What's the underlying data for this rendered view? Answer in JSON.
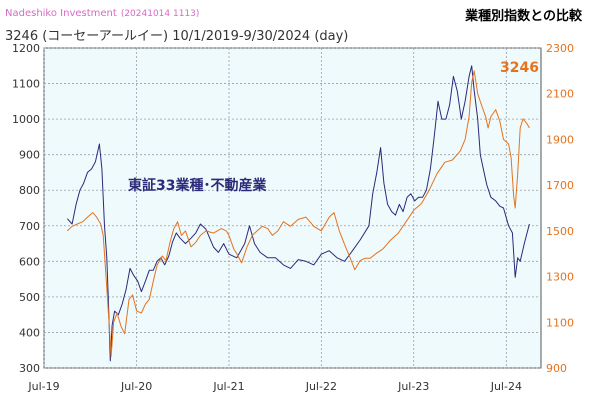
{
  "header": {
    "brand": "Nadeshiko Investment",
    "stamp": "(20241014 1113)",
    "title": "3246 (コーセーアールイー) 10/1/2019-9/30/2024 (day)",
    "compare_title": "業種別指数との比較"
  },
  "colors": {
    "index_line": "#2b2a7a",
    "stock_line": "#e5731e",
    "plot_bg": "#eefafc",
    "grid": "#9aa0a8"
  },
  "chart_data": {
    "type": "line",
    "x_ticks": [
      "Jul-19",
      "Jul-20",
      "Jul-21",
      "Jul-22",
      "Jul-23",
      "Jul-24"
    ],
    "xlim": [
      "2019-07-01",
      "2024-11-15"
    ],
    "y_left": {
      "ticks": [
        300,
        400,
        500,
        600,
        700,
        800,
        900,
        1000,
        1100,
        1200
      ],
      "lim": [
        300,
        1200
      ]
    },
    "y_right": {
      "ticks": [
        900,
        1100,
        1300,
        1500,
        1700,
        1900,
        2100,
        2300
      ],
      "lim": [
        900,
        2300
      ]
    },
    "series": [
      {
        "name": "東証33業種･不動産業",
        "axis": "left",
        "color": "#2b2a7a",
        "points": [
          [
            "2019-10-01",
            720
          ],
          [
            "2019-10-20",
            705
          ],
          [
            "2019-11-05",
            760
          ],
          [
            "2019-11-20",
            800
          ],
          [
            "2019-12-05",
            820
          ],
          [
            "2019-12-20",
            850
          ],
          [
            "2020-01-05",
            860
          ],
          [
            "2020-01-20",
            880
          ],
          [
            "2020-02-05",
            930
          ],
          [
            "2020-02-15",
            860
          ],
          [
            "2020-02-25",
            700
          ],
          [
            "2020-03-05",
            610
          ],
          [
            "2020-03-12",
            480
          ],
          [
            "2020-03-19",
            320
          ],
          [
            "2020-03-26",
            420
          ],
          [
            "2020-04-05",
            460
          ],
          [
            "2020-04-20",
            450
          ],
          [
            "2020-05-05",
            480
          ],
          [
            "2020-05-20",
            520
          ],
          [
            "2020-06-05",
            580
          ],
          [
            "2020-06-20",
            560
          ],
          [
            "2020-07-05",
            545
          ],
          [
            "2020-07-20",
            515
          ],
          [
            "2020-08-05",
            545
          ],
          [
            "2020-08-20",
            575
          ],
          [
            "2020-09-05",
            575
          ],
          [
            "2020-09-20",
            600
          ],
          [
            "2020-10-05",
            610
          ],
          [
            "2020-10-20",
            590
          ],
          [
            "2020-11-05",
            615
          ],
          [
            "2020-11-20",
            655
          ],
          [
            "2020-12-05",
            680
          ],
          [
            "2020-12-20",
            665
          ],
          [
            "2021-01-10",
            650
          ],
          [
            "2021-02-01",
            665
          ],
          [
            "2021-02-20",
            680
          ],
          [
            "2021-03-10",
            705
          ],
          [
            "2021-04-01",
            690
          ],
          [
            "2021-05-01",
            640
          ],
          [
            "2021-05-20",
            625
          ],
          [
            "2021-06-10",
            650
          ],
          [
            "2021-07-01",
            620
          ],
          [
            "2021-08-01",
            610
          ],
          [
            "2021-09-01",
            650
          ],
          [
            "2021-09-20",
            700
          ],
          [
            "2021-10-10",
            650
          ],
          [
            "2021-11-01",
            625
          ],
          [
            "2021-12-01",
            610
          ],
          [
            "2022-01-01",
            610
          ],
          [
            "2022-02-01",
            590
          ],
          [
            "2022-03-01",
            580
          ],
          [
            "2022-04-01",
            605
          ],
          [
            "2022-05-01",
            600
          ],
          [
            "2022-06-01",
            590
          ],
          [
            "2022-07-01",
            620
          ],
          [
            "2022-08-01",
            630
          ],
          [
            "2022-09-01",
            610
          ],
          [
            "2022-10-01",
            600
          ],
          [
            "2022-11-01",
            630
          ],
          [
            "2022-12-01",
            660
          ],
          [
            "2023-01-05",
            700
          ],
          [
            "2023-01-20",
            790
          ],
          [
            "2023-02-05",
            850
          ],
          [
            "2023-02-20",
            920
          ],
          [
            "2023-03-05",
            820
          ],
          [
            "2023-03-20",
            760
          ],
          [
            "2023-04-05",
            740
          ],
          [
            "2023-04-20",
            730
          ],
          [
            "2023-05-05",
            760
          ],
          [
            "2023-05-20",
            740
          ],
          [
            "2023-06-05",
            780
          ],
          [
            "2023-06-20",
            790
          ],
          [
            "2023-07-05",
            770
          ],
          [
            "2023-07-20",
            780
          ],
          [
            "2023-08-05",
            780
          ],
          [
            "2023-08-20",
            800
          ],
          [
            "2023-09-05",
            860
          ],
          [
            "2023-09-20",
            950
          ],
          [
            "2023-10-05",
            1050
          ],
          [
            "2023-10-20",
            1000
          ],
          [
            "2023-11-05",
            1000
          ],
          [
            "2023-11-20",
            1040
          ],
          [
            "2023-12-05",
            1120
          ],
          [
            "2023-12-20",
            1080
          ],
          [
            "2024-01-05",
            1000
          ],
          [
            "2024-01-20",
            1050
          ],
          [
            "2024-02-05",
            1120
          ],
          [
            "2024-02-15",
            1150
          ],
          [
            "2024-02-25",
            1080
          ],
          [
            "2024-03-10",
            1000
          ],
          [
            "2024-03-20",
            900
          ],
          [
            "2024-04-01",
            860
          ],
          [
            "2024-04-15",
            815
          ],
          [
            "2024-05-01",
            780
          ],
          [
            "2024-05-20",
            770
          ],
          [
            "2024-06-05",
            755
          ],
          [
            "2024-06-20",
            750
          ],
          [
            "2024-07-10",
            700
          ],
          [
            "2024-07-25",
            680
          ],
          [
            "2024-08-05",
            555
          ],
          [
            "2024-08-15",
            610
          ],
          [
            "2024-08-25",
            600
          ],
          [
            "2024-09-10",
            650
          ],
          [
            "2024-09-30",
            705
          ]
        ]
      },
      {
        "name": "3246",
        "axis": "right",
        "color": "#e5731e",
        "points": [
          [
            "2019-10-01",
            1500
          ],
          [
            "2019-10-20",
            1520
          ],
          [
            "2019-11-10",
            1530
          ],
          [
            "2019-12-01",
            1540
          ],
          [
            "2019-12-20",
            1560
          ],
          [
            "2020-01-10",
            1580
          ],
          [
            "2020-01-25",
            1560
          ],
          [
            "2020-02-10",
            1530
          ],
          [
            "2020-02-20",
            1480
          ],
          [
            "2020-03-05",
            1250
          ],
          [
            "2020-03-15",
            1080
          ],
          [
            "2020-03-22",
            950
          ],
          [
            "2020-04-01",
            1100
          ],
          [
            "2020-04-15",
            1140
          ],
          [
            "2020-05-01",
            1080
          ],
          [
            "2020-05-15",
            1050
          ],
          [
            "2020-06-01",
            1200
          ],
          [
            "2020-06-15",
            1220
          ],
          [
            "2020-07-01",
            1150
          ],
          [
            "2020-07-20",
            1140
          ],
          [
            "2020-08-05",
            1180
          ],
          [
            "2020-08-20",
            1200
          ],
          [
            "2020-09-05",
            1280
          ],
          [
            "2020-09-20",
            1350
          ],
          [
            "2020-10-10",
            1390
          ],
          [
            "2020-10-25",
            1370
          ],
          [
            "2020-11-10",
            1450
          ],
          [
            "2020-11-25",
            1510
          ],
          [
            "2020-12-10",
            1540
          ],
          [
            "2020-12-25",
            1480
          ],
          [
            "2021-01-10",
            1500
          ],
          [
            "2021-02-01",
            1430
          ],
          [
            "2021-02-20",
            1450
          ],
          [
            "2021-03-10",
            1480
          ],
          [
            "2021-04-01",
            1500
          ],
          [
            "2021-05-01",
            1490
          ],
          [
            "2021-06-01",
            1510
          ],
          [
            "2021-06-20",
            1500
          ],
          [
            "2021-07-01",
            1480
          ],
          [
            "2021-07-20",
            1420
          ],
          [
            "2021-08-01",
            1400
          ],
          [
            "2021-08-20",
            1360
          ],
          [
            "2021-09-10",
            1430
          ],
          [
            "2021-10-01",
            1480
          ],
          [
            "2021-10-20",
            1500
          ],
          [
            "2021-11-10",
            1520
          ],
          [
            "2021-12-01",
            1510
          ],
          [
            "2021-12-20",
            1480
          ],
          [
            "2022-01-10",
            1500
          ],
          [
            "2022-02-01",
            1540
          ],
          [
            "2022-03-01",
            1520
          ],
          [
            "2022-04-01",
            1550
          ],
          [
            "2022-05-01",
            1560
          ],
          [
            "2022-06-01",
            1520
          ],
          [
            "2022-07-01",
            1500
          ],
          [
            "2022-08-01",
            1560
          ],
          [
            "2022-08-20",
            1580
          ],
          [
            "2022-09-10",
            1500
          ],
          [
            "2022-10-01",
            1440
          ],
          [
            "2022-10-20",
            1390
          ],
          [
            "2022-11-10",
            1330
          ],
          [
            "2022-12-01",
            1370
          ],
          [
            "2022-12-20",
            1380
          ],
          [
            "2023-01-10",
            1380
          ],
          [
            "2023-02-01",
            1400
          ],
          [
            "2023-03-01",
            1420
          ],
          [
            "2023-04-01",
            1460
          ],
          [
            "2023-05-01",
            1490
          ],
          [
            "2023-06-01",
            1540
          ],
          [
            "2023-07-01",
            1590
          ],
          [
            "2023-08-01",
            1620
          ],
          [
            "2023-09-01",
            1680
          ],
          [
            "2023-10-01",
            1750
          ],
          [
            "2023-11-01",
            1800
          ],
          [
            "2023-12-01",
            1810
          ],
          [
            "2024-01-01",
            1850
          ],
          [
            "2024-01-20",
            1900
          ],
          [
            "2024-02-05",
            2000
          ],
          [
            "2024-02-15",
            2150
          ],
          [
            "2024-02-25",
            2200
          ],
          [
            "2024-03-10",
            2100
          ],
          [
            "2024-03-25",
            2050
          ],
          [
            "2024-04-10",
            2000
          ],
          [
            "2024-04-20",
            1950
          ],
          [
            "2024-05-01",
            2000
          ],
          [
            "2024-05-20",
            2030
          ],
          [
            "2024-06-05",
            1980
          ],
          [
            "2024-06-20",
            1900
          ],
          [
            "2024-07-10",
            1880
          ],
          [
            "2024-07-20",
            1820
          ],
          [
            "2024-07-30",
            1650
          ],
          [
            "2024-08-05",
            1600
          ],
          [
            "2024-08-15",
            1750
          ],
          [
            "2024-08-25",
            1950
          ],
          [
            "2024-09-05",
            1990
          ],
          [
            "2024-09-20",
            1970
          ],
          [
            "2024-09-30",
            1950
          ]
        ]
      }
    ],
    "annotations": {
      "index_label": "東証33業種･不動産業",
      "stock_label": "3246"
    },
    "grid": true
  }
}
